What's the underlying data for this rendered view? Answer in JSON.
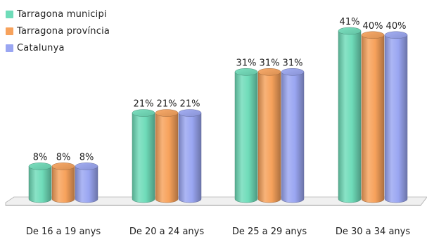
{
  "chart_data": {
    "type": "bar",
    "categories": [
      "De 16 a 19 anys",
      "De 20 a 24 anys",
      "De 25 a 29 anys",
      "De 30 a 34 anys"
    ],
    "series": [
      {
        "name": "Tarragona municipi",
        "color": "#6fdcb9",
        "values": [
          8,
          21,
          31,
          41
        ],
        "labels": [
          "8%",
          "21%",
          "31%",
          "41%"
        ]
      },
      {
        "name": "Tarragona província",
        "color": "#f7a25c",
        "values": [
          8,
          21,
          31,
          40
        ],
        "labels": [
          "8%",
          "21%",
          "31%",
          "40%"
        ]
      },
      {
        "name": "Catalunya",
        "color": "#9aa6f2",
        "values": [
          8,
          21,
          31,
          40
        ],
        "labels": [
          "8%",
          "21%",
          "31%",
          "40%"
        ]
      }
    ],
    "title": "",
    "xlabel": "",
    "ylabel": "",
    "ylim": [
      0,
      45
    ],
    "grid": false,
    "legend_position": "top-left",
    "style": "3d-cylinder"
  }
}
